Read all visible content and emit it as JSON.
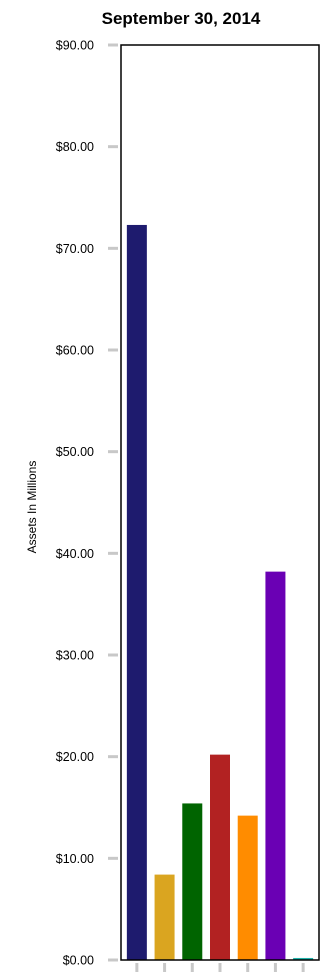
{
  "chart_data": {
    "type": "bar",
    "title": "September 30, 2014",
    "xlabel": "",
    "ylabel": "Assets In Millions",
    "ylim": [
      0,
      90
    ],
    "yticks": [
      0,
      10,
      20,
      30,
      40,
      50,
      60,
      70,
      80,
      90
    ],
    "ytick_labels": [
      "$0.00",
      "$10.00",
      "$20.00",
      "$30.00",
      "$40.00",
      "$50.00",
      "$60.00",
      "$70.00",
      "$80.00",
      "$90.00"
    ],
    "categories": [
      "",
      "",
      "",
      "",
      "",
      "",
      ""
    ],
    "values": [
      72.3,
      8.4,
      15.4,
      20.2,
      14.2,
      38.2,
      0.2
    ],
    "colors": [
      "#1E1B6E",
      "#DAA520",
      "#006400",
      "#B22222",
      "#FF8C00",
      "#6A00B4",
      "#20B2AA"
    ],
    "grid": false,
    "legend": "none"
  }
}
